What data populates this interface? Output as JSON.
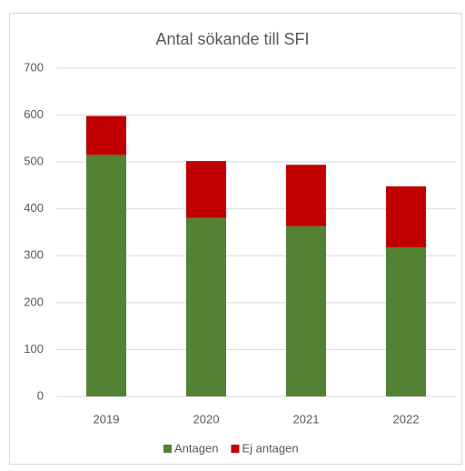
{
  "chart_data": {
    "type": "stacked_bar",
    "title": "Antal sökande till SFI",
    "categories": [
      "2019",
      "2020",
      "2021",
      "2022"
    ],
    "series": [
      {
        "name": "Antagen",
        "color": "#548235",
        "values": [
          515,
          381,
          363,
          318
        ]
      },
      {
        "name": "Ej antagen",
        "color": "#c00000",
        "values": [
          83,
          121,
          131,
          130
        ]
      }
    ],
    "ylim": [
      0,
      700
    ],
    "yticks": [
      0,
      100,
      200,
      300,
      400,
      500,
      600,
      700
    ],
    "grid": true,
    "legend": "bottom"
  }
}
